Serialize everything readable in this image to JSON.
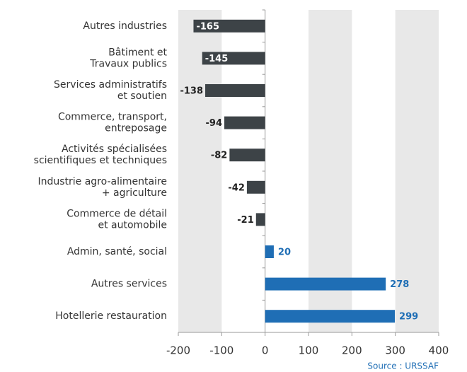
{
  "chart_data": {
    "type": "barh",
    "categories": [
      [
        "Autres industries"
      ],
      [
        "Bâtiment et",
        "Travaux publics"
      ],
      [
        "Services administratifs",
        "et soutien"
      ],
      [
        "Commerce, transport,",
        "entreposage"
      ],
      [
        "Activités spécialisées",
        "scientifiques et techniques"
      ],
      [
        "Industrie agro-alimentaire",
        "+ agriculture"
      ],
      [
        "Commerce de détail",
        "et automobile"
      ],
      [
        "Admin, santé, social"
      ],
      [
        "Autres services"
      ],
      [
        "Hotellerie restauration"
      ]
    ],
    "values": [
      -165,
      -145,
      -138,
      -94,
      -82,
      -42,
      -21,
      20,
      278,
      299
    ],
    "color_negative": "#3d4347",
    "color_positive": "#1f6eb5",
    "xlim": [
      -200,
      400
    ],
    "xticks": [
      -200,
      -100,
      0,
      100,
      200,
      300,
      400
    ],
    "source": "Source : URSSAF"
  }
}
